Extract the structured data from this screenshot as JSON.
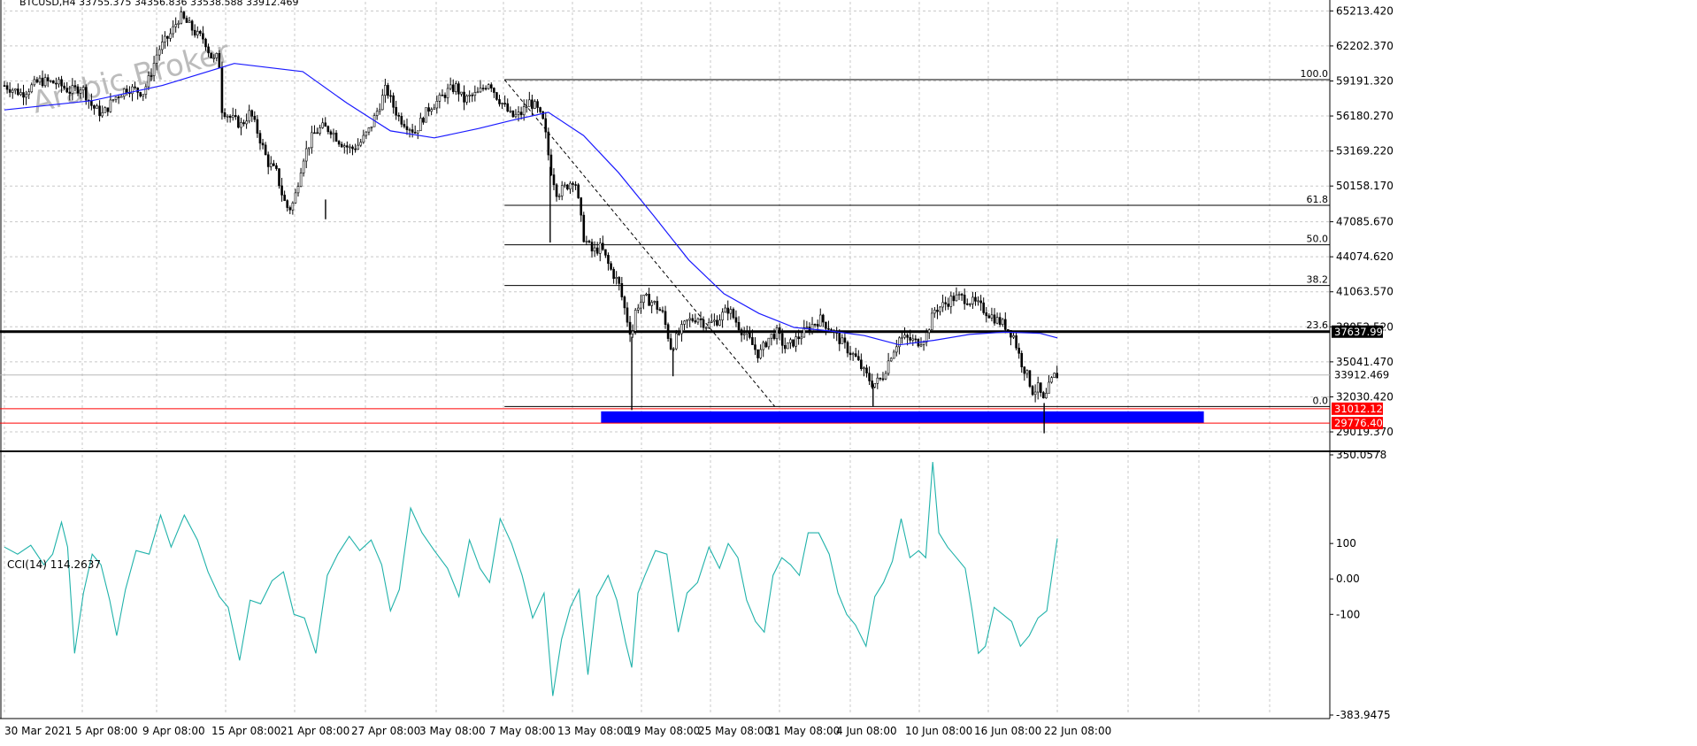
{
  "header": {
    "symbol_info": "BTCUSD,H4  33755.375 34356.836 33538.588 33912.469"
  },
  "watermark": "Arabic Broker",
  "colors": {
    "background": "#ffffff",
    "grid": "#c8c8c8",
    "candles": "#000000",
    "moving_average": "#1a1aff",
    "cci_line": "#20b2aa",
    "support_line": "#000000",
    "red_level": "#ff0000",
    "zone": "#0000ff",
    "fib": "#000000"
  },
  "chart_data": [
    {
      "type": "candlestick",
      "title": "BTCUSD,H4",
      "ylim": [
        27500,
        66000
      ],
      "x_ticks": [
        "30 Mar 2021",
        "5 Apr 08:00",
        "9 Apr 08:00",
        "15 Apr 08:00",
        "21 Apr 08:00",
        "27 Apr 08:00",
        "3 May 08:00",
        "7 May 08:00",
        "13 May 08:00",
        "19 May 08:00",
        "25 May 08:00",
        "31 May 08:00",
        "4 Jun 08:00",
        "10 Jun 08:00",
        "16 Jun 08:00",
        "22 Jun 08:00"
      ],
      "y_ticks": [
        "65213.420",
        "62202.370",
        "59191.320",
        "56180.270",
        "53169.220",
        "50158.170",
        "47085.670",
        "44074.620",
        "41063.570",
        "38052.520",
        "35041.470",
        "32030.420",
        "29019.370"
      ],
      "price_path": [
        [
          0,
          58800
        ],
        [
          20,
          58100
        ],
        [
          40,
          59200
        ],
        [
          60,
          59000
        ],
        [
          75,
          58300
        ],
        [
          88,
          58700
        ],
        [
          100,
          57000
        ],
        [
          112,
          56300
        ],
        [
          125,
          57700
        ],
        [
          140,
          58600
        ],
        [
          158,
          58200
        ],
        [
          165,
          59400
        ],
        [
          175,
          61800
        ],
        [
          190,
          63300
        ],
        [
          200,
          64800
        ],
        [
          210,
          64000
        ],
        [
          220,
          63100
        ],
        [
          228,
          62800
        ],
        [
          234,
          61500
        ],
        [
          240,
          60800
        ],
        [
          244,
          61700
        ],
        [
          248,
          56800
        ],
        [
          258,
          56000
        ],
        [
          270,
          55400
        ],
        [
          280,
          56500
        ],
        [
          290,
          54500
        ],
        [
          300,
          52200
        ],
        [
          310,
          51300
        ],
        [
          318,
          49000
        ],
        [
          324,
          48100
        ],
        [
          330,
          48800
        ],
        [
          340,
          52500
        ],
        [
          352,
          54600
        ],
        [
          362,
          55200
        ],
        [
          372,
          55000
        ],
        [
          382,
          54000
        ],
        [
          395,
          53300
        ],
        [
          405,
          53800
        ],
        [
          416,
          55000
        ],
        [
          427,
          57000
        ],
        [
          435,
          58600
        ],
        [
          442,
          57200
        ],
        [
          450,
          56000
        ],
        [
          458,
          55500
        ],
        [
          468,
          54800
        ],
        [
          476,
          55900
        ],
        [
          485,
          57000
        ],
        [
          495,
          57500
        ],
        [
          505,
          58300
        ],
        [
          515,
          58700
        ],
        [
          523,
          57500
        ],
        [
          530,
          57800
        ],
        [
          540,
          58100
        ],
        [
          548,
          58800
        ],
        [
          553,
          59200
        ],
        [
          560,
          58000
        ],
        [
          568,
          57200
        ],
        [
          578,
          56100
        ],
        [
          588,
          56300
        ],
        [
          598,
          57400
        ],
        [
          606,
          56900
        ],
        [
          615,
          55500
        ],
        [
          622,
          51800
        ],
        [
          630,
          49500
        ],
        [
          640,
          50100
        ],
        [
          650,
          50900
        ],
        [
          660,
          45800
        ],
        [
          670,
          44500
        ],
        [
          680,
          44900
        ],
        [
          690,
          43100
        ],
        [
          700,
          41800
        ],
        [
          710,
          38600
        ],
        [
          715,
          37200
        ],
        [
          720,
          39800
        ],
        [
          730,
          40500
        ],
        [
          740,
          40100
        ],
        [
          750,
          39200
        ],
        [
          760,
          36200
        ],
        [
          768,
          37400
        ],
        [
          778,
          38500
        ],
        [
          790,
          38900
        ],
        [
          800,
          38200
        ],
        [
          812,
          38600
        ],
        [
          825,
          39600
        ],
        [
          838,
          38000
        ],
        [
          850,
          36800
        ],
        [
          860,
          35600
        ],
        [
          870,
          37000
        ],
        [
          880,
          37600
        ],
        [
          890,
          36200
        ],
        [
          900,
          36800
        ],
        [
          910,
          37500
        ],
        [
          920,
          38200
        ],
        [
          930,
          38700
        ],
        [
          940,
          38000
        ],
        [
          950,
          37100
        ],
        [
          960,
          36200
        ],
        [
          970,
          35400
        ],
        [
          980,
          34100
        ],
        [
          990,
          33100
        ],
        [
          1000,
          33600
        ],
        [
          1010,
          35600
        ],
        [
          1020,
          37100
        ],
        [
          1030,
          37000
        ],
        [
          1040,
          36700
        ],
        [
          1050,
          37200
        ],
        [
          1060,
          39500
        ],
        [
          1072,
          40000
        ],
        [
          1080,
          40500
        ],
        [
          1090,
          40600
        ],
        [
          1100,
          40300
        ],
        [
          1110,
          39900
        ],
        [
          1120,
          39300
        ],
        [
          1130,
          38700
        ],
        [
          1140,
          38200
        ],
        [
          1150,
          37300
        ],
        [
          1158,
          35200
        ],
        [
          1166,
          33800
        ],
        [
          1172,
          32500
        ],
        [
          1178,
          32800
        ],
        [
          1185,
          31500
        ],
        [
          1190,
          32800
        ],
        [
          1196,
          33800
        ],
        [
          1200,
          33912
        ]
      ],
      "moving_average_path": [
        [
          0,
          56700
        ],
        [
          100,
          57500
        ],
        [
          180,
          58800
        ],
        [
          262,
          60700
        ],
        [
          340,
          60000
        ],
        [
          390,
          57300
        ],
        [
          440,
          54900
        ],
        [
          490,
          54300
        ],
        [
          540,
          55100
        ],
        [
          578,
          55800
        ],
        [
          620,
          56500
        ],
        [
          660,
          54500
        ],
        [
          700,
          51300
        ],
        [
          740,
          47600
        ],
        [
          780,
          43800
        ],
        [
          820,
          40900
        ],
        [
          860,
          39200
        ],
        [
          900,
          38000
        ],
        [
          940,
          37700
        ],
        [
          980,
          37300
        ],
        [
          1020,
          36500
        ],
        [
          1060,
          36900
        ],
        [
          1100,
          37400
        ],
        [
          1140,
          37600
        ],
        [
          1180,
          37500
        ],
        [
          1200,
          37100
        ]
      ],
      "fibonacci": {
        "levels": [
          {
            "label": "100.0",
            "price": 59300
          },
          {
            "label": "61.8",
            "price": 48500
          },
          {
            "label": "50.0",
            "price": 45100
          },
          {
            "label": "38.2",
            "price": 41600
          },
          {
            "label": "23.6",
            "price": 37700
          },
          {
            "label": "0.0",
            "price": 31200
          }
        ]
      },
      "trend_line": {
        "from": [
          570,
          59300
        ],
        "to": [
          878,
          31200
        ]
      },
      "support_line": {
        "price": 37637.99,
        "label": "37637.990"
      },
      "current_price": {
        "price": 33912.469,
        "label": "33912.469"
      },
      "red_levels": [
        {
          "price": 31012.129,
          "label": "31012.129"
        },
        {
          "price": 29776.406,
          "label": "29776.406"
        }
      ],
      "zone": {
        "from": [
          680,
          31012.129
        ],
        "to": [
          1367,
          29776.406
        ]
      }
    },
    {
      "type": "line",
      "title": "CCI(14) 114.2637",
      "ylim": [
        -383.9475,
        350.0578
      ],
      "y_ticks": [
        "350.0578",
        "100",
        "0.00",
        "-100",
        "-383.9475"
      ],
      "cci_path": [
        [
          0,
          90
        ],
        [
          15,
          70
        ],
        [
          30,
          95
        ],
        [
          45,
          40
        ],
        [
          55,
          70
        ],
        [
          65,
          160
        ],
        [
          72,
          90
        ],
        [
          80,
          -210
        ],
        [
          90,
          -40
        ],
        [
          100,
          70
        ],
        [
          110,
          40
        ],
        [
          120,
          -60
        ],
        [
          128,
          -160
        ],
        [
          138,
          -30
        ],
        [
          150,
          80
        ],
        [
          165,
          70
        ],
        [
          178,
          180
        ],
        [
          190,
          90
        ],
        [
          205,
          180
        ],
        [
          220,
          110
        ],
        [
          232,
          20
        ],
        [
          245,
          -50
        ],
        [
          255,
          -80
        ],
        [
          268,
          -230
        ],
        [
          280,
          -60
        ],
        [
          292,
          -70
        ],
        [
          305,
          -5
        ],
        [
          318,
          20
        ],
        [
          330,
          -100
        ],
        [
          342,
          -110
        ],
        [
          355,
          -210
        ],
        [
          368,
          10
        ],
        [
          380,
          70
        ],
        [
          393,
          120
        ],
        [
          405,
          80
        ],
        [
          418,
          110
        ],
        [
          430,
          40
        ],
        [
          440,
          -90
        ],
        [
          450,
          -30
        ],
        [
          463,
          200
        ],
        [
          476,
          130
        ],
        [
          490,
          80
        ],
        [
          505,
          30
        ],
        [
          518,
          -50
        ],
        [
          530,
          110
        ],
        [
          542,
          30
        ],
        [
          553,
          -10
        ],
        [
          565,
          170
        ],
        [
          578,
          100
        ],
        [
          590,
          10
        ],
        [
          602,
          -110
        ],
        [
          615,
          -40
        ],
        [
          625,
          -330
        ],
        [
          635,
          -170
        ],
        [
          645,
          -80
        ],
        [
          655,
          -30
        ],
        [
          665,
          -270
        ],
        [
          675,
          -50
        ],
        [
          688,
          10
        ],
        [
          698,
          -60
        ],
        [
          708,
          -180
        ],
        [
          715,
          -250
        ],
        [
          722,
          -40
        ],
        [
          730,
          10
        ],
        [
          742,
          80
        ],
        [
          755,
          70
        ],
        [
          768,
          -150
        ],
        [
          778,
          -40
        ],
        [
          790,
          -10
        ],
        [
          803,
          90
        ],
        [
          815,
          30
        ],
        [
          825,
          100
        ],
        [
          836,
          60
        ],
        [
          846,
          -60
        ],
        [
          856,
          -120
        ],
        [
          866,
          -150
        ],
        [
          876,
          10
        ],
        [
          886,
          60
        ],
        [
          896,
          40
        ],
        [
          906,
          10
        ],
        [
          916,
          130
        ],
        [
          928,
          130
        ],
        [
          940,
          70
        ],
        [
          950,
          -40
        ],
        [
          960,
          -100
        ],
        [
          970,
          -130
        ],
        [
          982,
          -190
        ],
        [
          992,
          -50
        ],
        [
          1002,
          -10
        ],
        [
          1012,
          50
        ],
        [
          1022,
          170
        ],
        [
          1032,
          60
        ],
        [
          1042,
          80
        ],
        [
          1050,
          60
        ],
        [
          1058,
          330
        ],
        [
          1065,
          130
        ],
        [
          1075,
          90
        ],
        [
          1085,
          60
        ],
        [
          1095,
          30
        ],
        [
          1103,
          -90
        ],
        [
          1110,
          -210
        ],
        [
          1118,
          -190
        ],
        [
          1128,
          -80
        ],
        [
          1138,
          -100
        ],
        [
          1148,
          -120
        ],
        [
          1158,
          -190
        ],
        [
          1168,
          -160
        ],
        [
          1178,
          -110
        ],
        [
          1188,
          -90
        ],
        [
          1200,
          114.26
        ]
      ]
    }
  ]
}
